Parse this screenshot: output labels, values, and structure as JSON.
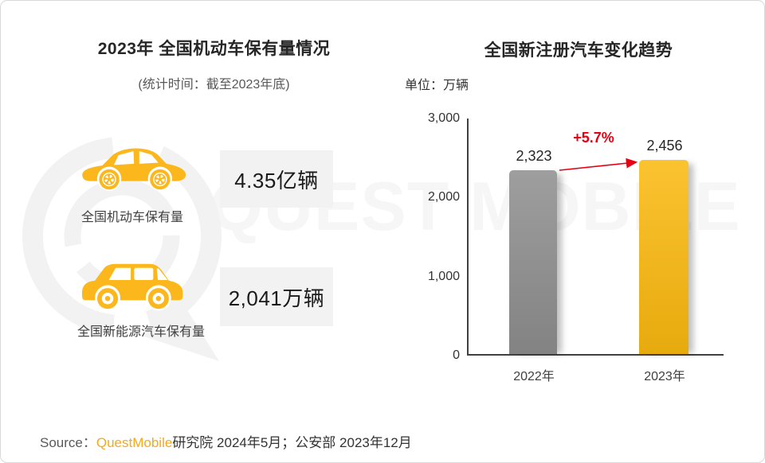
{
  "colors": {
    "accent": "#FBB71B",
    "annotation_red": "#E60012",
    "value_box_bg": "#F2F2F2",
    "watermark": "#F6F6F6",
    "text_dark": "#262626",
    "text_gray": "#595959",
    "border": "#D9D9D9",
    "axis": "#404040",
    "source_brand": "#F7A81B"
  },
  "watermark_text": "QUEST MOBILE",
  "left_panel": {
    "title": "2023年 全国机动车保有量情况",
    "subtitle": "(统计时间：截至2023年底)",
    "items": [
      {
        "icon": "sedan-car-icon",
        "label": "全国机动车保有量",
        "value": "4.35亿辆"
      },
      {
        "icon": "suv-car-icon",
        "label": "全国新能源汽车保有量",
        "value": "2,041万辆"
      }
    ]
  },
  "right_panel": {
    "title": "全国新注册汽车变化趋势",
    "unit_label": "单位：万辆"
  },
  "chart_data": {
    "type": "bar",
    "title": "全国新注册汽车变化趋势",
    "unit": "万辆",
    "categories": [
      "2022年",
      "2023年"
    ],
    "values": [
      2323,
      2456
    ],
    "value_labels": [
      "2,323",
      "2,456"
    ],
    "bar_colors": [
      "#8E8E8E",
      "#FBB90F"
    ],
    "annotation": {
      "text": "+5.7%",
      "color": "#E60012"
    },
    "ylim": [
      0,
      3000
    ],
    "yticks": [
      0,
      1000,
      2000,
      3000
    ],
    "ytick_labels": [
      "0",
      "1,000",
      "2,000",
      "3,000"
    ],
    "grid": false,
    "legend": "none"
  },
  "footer": {
    "source_prefix": "Source：",
    "source_brand": "QuestMobile",
    "source_rest": "研究院 2024年5月；公安部 2023年12月"
  }
}
